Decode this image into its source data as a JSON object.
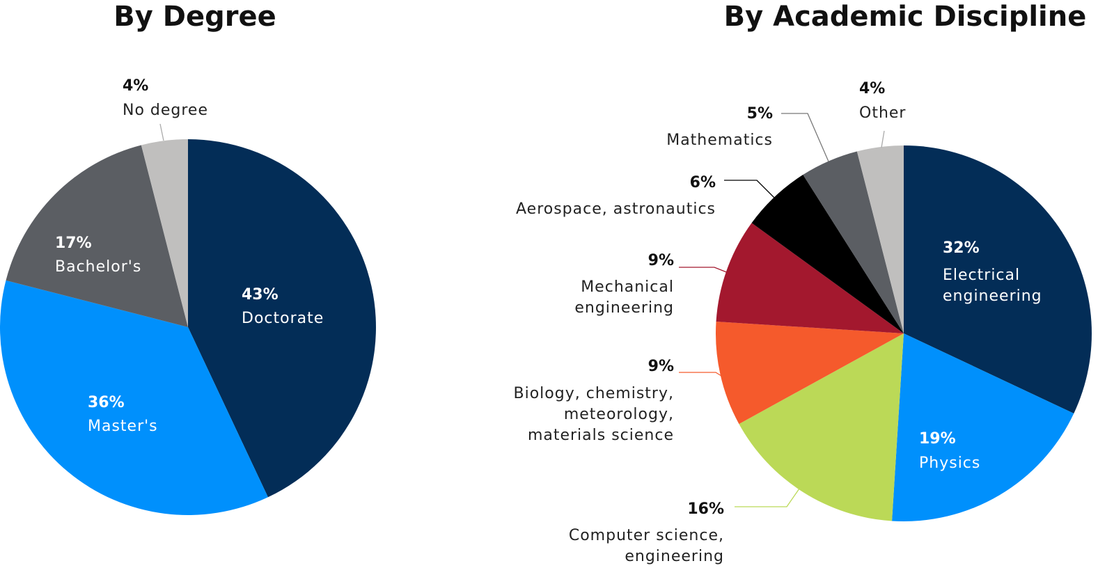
{
  "chart_data": [
    {
      "type": "pie",
      "title": "By Degree",
      "slices": [
        {
          "label": "Doctorate",
          "value": 43,
          "pct_label": "43%",
          "color": "#032d57"
        },
        {
          "label": "Master's",
          "value": 36,
          "pct_label": "36%",
          "color": "#0090fc"
        },
        {
          "label": "Bachelor's",
          "value": 17,
          "pct_label": "17%",
          "color": "#5b5e63"
        },
        {
          "label": "No degree",
          "value": 4,
          "pct_label": "4%",
          "color": "#c0bfbe"
        }
      ]
    },
    {
      "type": "pie",
      "title": "By Academic Discipline",
      "slices": [
        {
          "label": "Electrical engineering",
          "lines": [
            "Electrical",
            "engineering"
          ],
          "value": 32,
          "pct_label": "32%",
          "color": "#032d57"
        },
        {
          "label": "Physics",
          "lines": [
            "Physics"
          ],
          "value": 19,
          "pct_label": "19%",
          "color": "#0090fc"
        },
        {
          "label": "Computer science, engineering",
          "lines": [
            "Computer science,",
            "engineering"
          ],
          "value": 16,
          "pct_label": "16%",
          "color": "#bbd957"
        },
        {
          "label": "Biology, chemistry, meteorology, materials science",
          "lines": [
            "Biology, chemistry,",
            "meteorology,",
            "materials science"
          ],
          "value": 9,
          "pct_label": "9%",
          "color": "#f55a2c"
        },
        {
          "label": "Mechanical engineering",
          "lines": [
            "Mechanical",
            "engineering"
          ],
          "value": 9,
          "pct_label": "9%",
          "color": "#a3182e"
        },
        {
          "label": "Aerospace, astronautics",
          "lines": [
            "Aerospace, astronautics"
          ],
          "value": 6,
          "pct_label": "6%",
          "color": "#000000"
        },
        {
          "label": "Mathematics",
          "lines": [
            "Mathematics"
          ],
          "value": 5,
          "pct_label": "5%",
          "color": "#5b5e63"
        },
        {
          "label": "Other",
          "lines": [
            "Other"
          ],
          "value": 4,
          "pct_label": "4%",
          "color": "#c0bfbe"
        }
      ]
    }
  ]
}
